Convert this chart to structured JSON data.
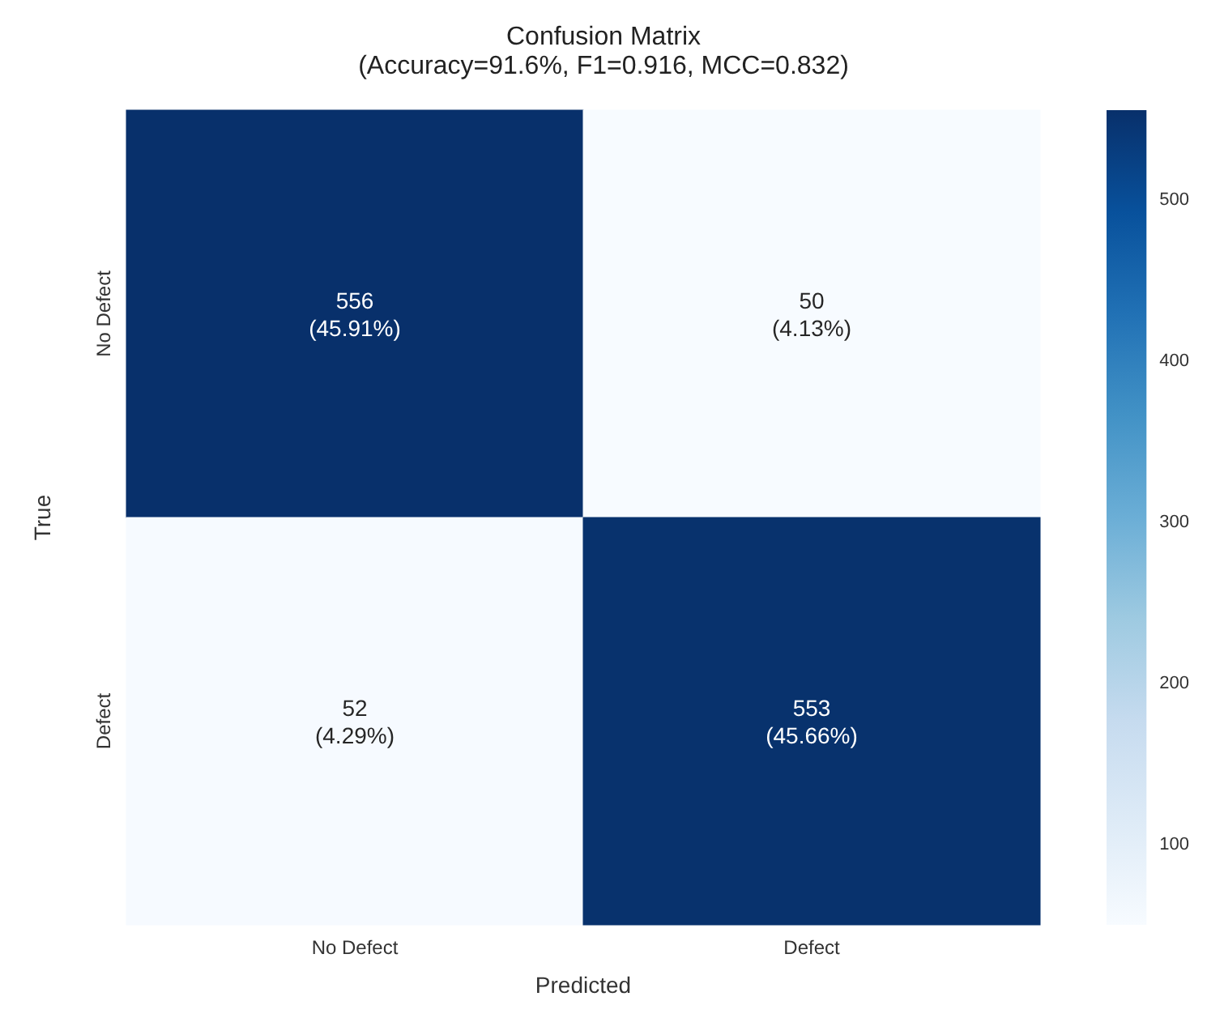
{
  "chart_data": {
    "type": "heatmap",
    "title": "Confusion Matrix",
    "subtitle": "(Accuracy=91.6%, F1=0.916, MCC=0.832)",
    "xlabel": "Predicted",
    "ylabel": "True",
    "categories": [
      "No Defect",
      "Defect"
    ],
    "y_categories": [
      "No Defect",
      "Defect"
    ],
    "cells": [
      [
        556,
        50
      ],
      [
        52,
        553
      ]
    ],
    "cell_labels": [
      [
        "556\n(45.91%)",
        "50\n(4.13%)"
      ],
      [
        "52\n(4.29%)",
        "553\n(45.66%)"
      ]
    ],
    "clim": [
      50,
      556
    ],
    "cticks": [
      100,
      200,
      300,
      400,
      500
    ]
  }
}
